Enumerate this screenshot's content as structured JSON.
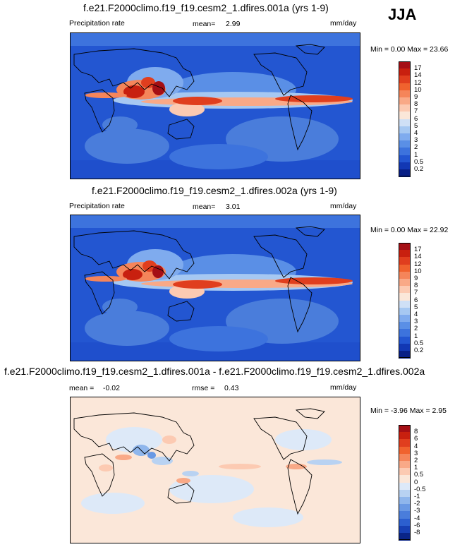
{
  "season": "JJA",
  "chart_data": [
    {
      "type": "heatmap",
      "title": "f.e21.F2000climo.f19_f19.cesm2_1.dfires.001a (yrs 1-9)",
      "variable": "Precipitation rate",
      "mean_label": "mean=",
      "mean_value": "2.99",
      "units": "mm/day",
      "range_text": "Min =   0.00 Max =  23.66",
      "min": 0.0,
      "max": 23.66,
      "levels": [
        "17",
        "14",
        "12",
        "10",
        "9",
        "8",
        "7",
        "6",
        "5",
        "4",
        "3",
        "2",
        "1",
        "0.5",
        "0.2"
      ],
      "colors": [
        "#a50f15",
        "#c8200f",
        "#e03e1e",
        "#f0622e",
        "#f5855a",
        "#f9a987",
        "#fccab2",
        "#fbe7d9",
        "#cfe0f6",
        "#a6c8f2",
        "#7fabee",
        "#5a8fe6",
        "#3d73dd",
        "#2356d1",
        "#1238b4",
        "#081f86"
      ]
    },
    {
      "type": "heatmap",
      "title": "f.e21.F2000climo.f19_f19.cesm2_1.dfires.002a (yrs 1-9)",
      "variable": "Precipitation rate",
      "mean_label": "mean=",
      "mean_value": "3.01",
      "units": "mm/day",
      "range_text": "Min =   0.00 Max =  22.92",
      "min": 0.0,
      "max": 22.92,
      "levels": [
        "17",
        "14",
        "12",
        "10",
        "9",
        "8",
        "7",
        "6",
        "5",
        "4",
        "3",
        "2",
        "1",
        "0.5",
        "0.2"
      ],
      "colors": [
        "#a50f15",
        "#c8200f",
        "#e03e1e",
        "#f0622e",
        "#f5855a",
        "#f9a987",
        "#fccab2",
        "#fbe7d9",
        "#cfe0f6",
        "#a6c8f2",
        "#7fabee",
        "#5a8fe6",
        "#3d73dd",
        "#2356d1",
        "#1238b4",
        "#081f86"
      ]
    },
    {
      "type": "heatmap",
      "title": "f.e21.F2000climo.f19_f19.cesm2_1.dfires.001a - f.e21.F2000climo.f19_f19.cesm2_1.dfires.002a",
      "mean_label": "mean =",
      "mean_value": "-0.02",
      "rmse_label": "rmse =",
      "rmse_value": "0.43",
      "units": "mm/day",
      "range_text": "Min =  -3.96 Max =   2.95",
      "min": -3.96,
      "max": 2.95,
      "levels": [
        "8",
        "6",
        "4",
        "3",
        "2",
        "1",
        "0.5",
        "0",
        "-0.5",
        "-1",
        "-2",
        "-3",
        "-4",
        "-6",
        "-8"
      ],
      "colors": [
        "#a50f15",
        "#c8200f",
        "#e03e1e",
        "#f0622e",
        "#f5855a",
        "#f9a987",
        "#fccab2",
        "#fbe7d9",
        "#dde9f8",
        "#b8d2f2",
        "#8fb6ec",
        "#6a99e4",
        "#4a7ddb",
        "#2c5fcf",
        "#1740b4",
        "#0a2587"
      ]
    }
  ]
}
